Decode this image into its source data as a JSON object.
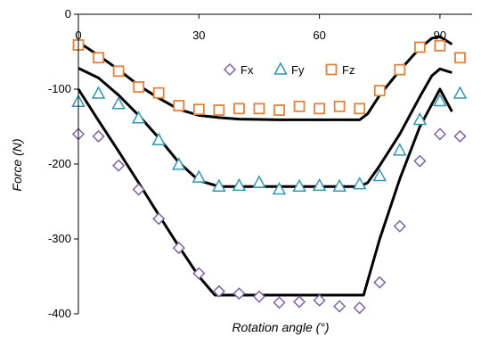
{
  "chart_data": {
    "type": "scatter",
    "xlabel": "Rotation angle (°)",
    "ylabel": "Force (N)",
    "xlim": [
      0,
      98
    ],
    "ylim": [
      -400,
      0
    ],
    "x_ticks": [
      0,
      30,
      60,
      90
    ],
    "y_ticks": [
      0,
      -100,
      -200,
      -300,
      -400
    ],
    "x_tick_labels": [
      "0",
      "30",
      "60",
      "90"
    ],
    "y_tick_labels": [
      "0",
      "-100",
      "-200",
      "-300",
      "-400"
    ],
    "x_axis_position": "top",
    "grid": false,
    "legend_position": "top-center",
    "series": [
      {
        "name": "Fx",
        "marker": "diamond",
        "color": "#7F62A8",
        "x": [
          0,
          5,
          10,
          15,
          20,
          25,
          30,
          35,
          40,
          45,
          50,
          55,
          60,
          65,
          70,
          75,
          80,
          85,
          90,
          95
        ],
        "y": [
          -160,
          -163,
          -202,
          -234,
          -273,
          -312,
          -346,
          -370,
          -373,
          -377,
          -385,
          -384,
          -382,
          -390,
          -392,
          -358,
          -283,
          -196,
          -160,
          -163
        ]
      },
      {
        "name": "Fy",
        "marker": "triangle",
        "color": "#2F97B4",
        "x": [
          0,
          5,
          10,
          15,
          20,
          25,
          30,
          35,
          40,
          45,
          50,
          55,
          60,
          65,
          70,
          75,
          80,
          85,
          90,
          95
        ],
        "y": [
          -117,
          -106,
          -120,
          -139,
          -168,
          -201,
          -218,
          -230,
          -229,
          -225,
          -234,
          -230,
          -229,
          -230,
          -227,
          -216,
          -182,
          -141,
          -116,
          -106
        ]
      },
      {
        "name": "Fz",
        "marker": "square",
        "color": "#E5803A",
        "x": [
          0,
          5,
          10,
          15,
          20,
          25,
          30,
          35,
          40,
          45,
          50,
          55,
          60,
          65,
          70,
          75,
          80,
          85,
          90,
          95
        ],
        "y": [
          -41,
          -58,
          -76,
          -97,
          -105,
          -122,
          -127,
          -128,
          -126,
          -126,
          -128,
          -123,
          -126,
          -123,
          -126,
          -102,
          -74,
          -44,
          -42,
          -58
        ]
      }
    ],
    "model_curves": [
      {
        "for": "Fx",
        "color": "#000000",
        "x": [
          0,
          5,
          10,
          15,
          20,
          25,
          30,
          34,
          40,
          50,
          60,
          65,
          70,
          71,
          75,
          80,
          85,
          88,
          90,
          93
        ],
        "y": [
          -100,
          -142,
          -183,
          -225,
          -268,
          -310,
          -350,
          -375,
          -375,
          -375,
          -375,
          -375,
          -375,
          -375,
          -300,
          -220,
          -150,
          -120,
          -100,
          -130
        ]
      },
      {
        "for": "Fy",
        "color": "#000000",
        "x": [
          0,
          5,
          10,
          15,
          20,
          25,
          30,
          35,
          40,
          50,
          60,
          65,
          70,
          72,
          75,
          80,
          85,
          88,
          90,
          93
        ],
        "y": [
          -72,
          -85,
          -108,
          -135,
          -165,
          -198,
          -222,
          -230,
          -230,
          -230,
          -230,
          -230,
          -230,
          -225,
          -202,
          -160,
          -110,
          -82,
          -73,
          -78
        ]
      },
      {
        "for": "Fz",
        "color": "#000000",
        "x": [
          0,
          5,
          10,
          15,
          20,
          25,
          30,
          35,
          40,
          50,
          60,
          65,
          70,
          72,
          75,
          80,
          85,
          88,
          90,
          93
        ],
        "y": [
          -37,
          -55,
          -74,
          -95,
          -112,
          -127,
          -135,
          -138,
          -140,
          -141,
          -141,
          -141,
          -141,
          -133,
          -108,
          -75,
          -45,
          -32,
          -30,
          -40
        ]
      }
    ]
  }
}
